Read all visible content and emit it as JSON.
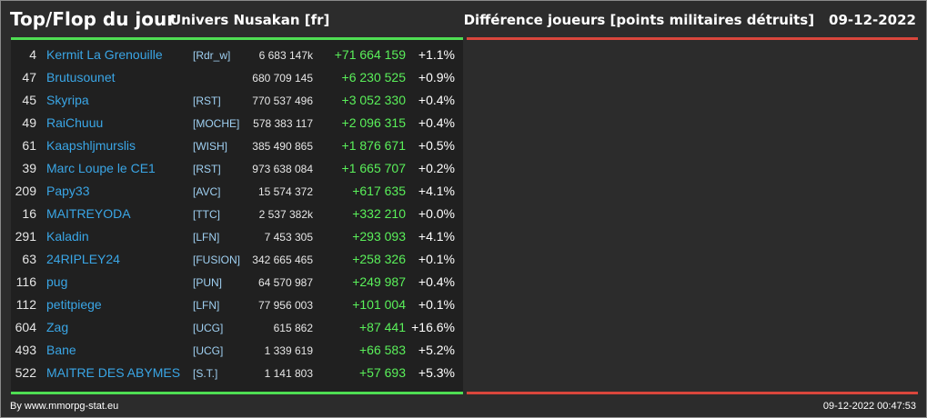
{
  "header": {
    "title": "Top/Flop du jour",
    "universe": "Univers Nusakan [fr]",
    "metric": "Différence joueurs [points militaires détruits]",
    "date": "09-12-2022"
  },
  "colors": {
    "top_accent": "#4fde53",
    "flop_accent": "#d9463c",
    "player_name": "#3aa6e6",
    "alliance": "#9fd0f2",
    "gain": "#5af05a"
  },
  "top_players": [
    {
      "rank": "4",
      "name": "Kermit La Grenouille",
      "alliance": "[Rdr_w]",
      "points": "6 683 147k",
      "diff": "+71 664 159",
      "pct": "+1.1%"
    },
    {
      "rank": "47",
      "name": "Brutusounet",
      "alliance": "",
      "points": "680 709 145",
      "diff": "+6 230 525",
      "pct": "+0.9%"
    },
    {
      "rank": "45",
      "name": "Skyripa",
      "alliance": "[RST]",
      "points": "770 537 496",
      "diff": "+3 052 330",
      "pct": "+0.4%"
    },
    {
      "rank": "49",
      "name": "RaiChuuu",
      "alliance": "[MOCHE]",
      "points": "578 383 117",
      "diff": "+2 096 315",
      "pct": "+0.4%"
    },
    {
      "rank": "61",
      "name": "Kaapshljmurslis",
      "alliance": "[WISH]",
      "points": "385 490 865",
      "diff": "+1 876 671",
      "pct": "+0.5%"
    },
    {
      "rank": "39",
      "name": "Marc Loupe le CE1",
      "alliance": "[RST]",
      "points": "973 638 084",
      "diff": "+1 665 707",
      "pct": "+0.2%"
    },
    {
      "rank": "209",
      "name": "Papy33",
      "alliance": "[AVC]",
      "points": "15 574 372",
      "diff": "+617 635",
      "pct": "+4.1%"
    },
    {
      "rank": "16",
      "name": "MAITREYODA",
      "alliance": "[TTC]",
      "points": "2 537 382k",
      "diff": "+332 210",
      "pct": "+0.0%"
    },
    {
      "rank": "291",
      "name": "Kaladin",
      "alliance": "[LFN]",
      "points": "7 453 305",
      "diff": "+293 093",
      "pct": "+4.1%"
    },
    {
      "rank": "63",
      "name": "24RIPLEY24",
      "alliance": "[FUSION]",
      "points": "342 665 465",
      "diff": "+258 326",
      "pct": "+0.1%"
    },
    {
      "rank": "116",
      "name": "pug",
      "alliance": "[PUN]",
      "points": "64 570 987",
      "diff": "+249 987",
      "pct": "+0.4%"
    },
    {
      "rank": "112",
      "name": "petitpiege",
      "alliance": "[LFN]",
      "points": "77 956 003",
      "diff": "+101 004",
      "pct": "+0.1%"
    },
    {
      "rank": "604",
      "name": "Zag",
      "alliance": "[UCG]",
      "points": "615 862",
      "diff": "+87 441",
      "pct": "+16.6%"
    },
    {
      "rank": "493",
      "name": "Bane",
      "alliance": "[UCG]",
      "points": "1 339 619",
      "diff": "+66 583",
      "pct": "+5.2%"
    },
    {
      "rank": "522",
      "name": "MAITRE DES ABYMES",
      "alliance": "[S.T.]",
      "points": "1 141 803",
      "diff": "+57 693",
      "pct": "+5.3%"
    }
  ],
  "footer": {
    "credit": "By www.mmorpg-stat.eu",
    "timestamp": "09-12-2022 00:47:53"
  }
}
